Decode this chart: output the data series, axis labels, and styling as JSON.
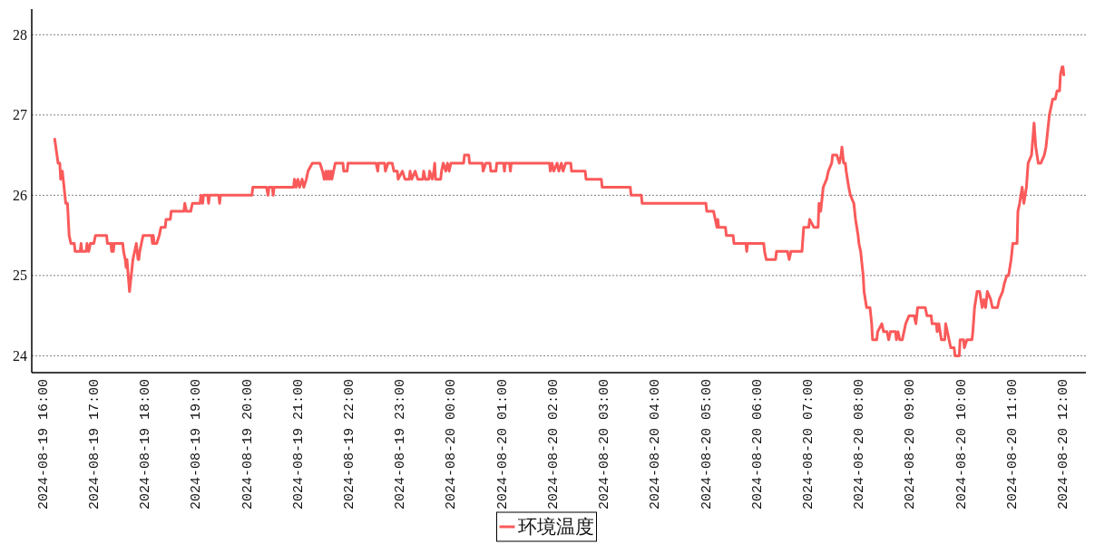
{
  "chart_data": {
    "type": "line",
    "x": [
      "2024-08-19T16:13",
      "2024-08-19T16:17",
      "2024-08-19T16:19",
      "2024-08-19T16:20",
      "2024-08-19T16:22",
      "2024-08-19T16:23",
      "2024-08-19T16:26",
      "2024-08-19T16:28",
      "2024-08-19T16:30",
      "2024-08-19T16:32",
      "2024-08-19T16:36",
      "2024-08-19T16:37",
      "2024-08-19T16:43",
      "2024-08-19T16:44",
      "2024-08-19T16:45",
      "2024-08-19T16:50",
      "2024-08-19T16:51",
      "2024-08-19T16:53",
      "2024-08-19T16:55",
      "2024-08-19T16:59",
      "2024-08-19T17:01",
      "2024-08-19T17:14",
      "2024-08-19T17:15",
      "2024-08-19T17:19",
      "2024-08-19T17:20",
      "2024-08-19T17:21",
      "2024-08-19T17:22",
      "2024-08-19T17:23",
      "2024-08-19T17:33",
      "2024-08-19T17:34",
      "2024-08-19T17:36",
      "2024-08-19T17:37",
      "2024-08-19T17:38",
      "2024-08-19T17:41",
      "2024-08-19T17:44",
      "2024-08-19T17:45",
      "2024-08-19T17:49",
      "2024-08-19T17:51",
      "2024-08-19T17:52",
      "2024-08-19T17:53",
      "2024-08-19T17:55",
      "2024-08-19T17:57",
      "2024-08-19T18:07",
      "2024-08-19T18:08",
      "2024-08-19T18:09",
      "2024-08-19T18:10",
      "2024-08-19T18:13",
      "2024-08-19T18:16",
      "2024-08-19T18:18",
      "2024-08-19T18:23",
      "2024-08-19T18:24",
      "2024-08-19T18:29",
      "2024-08-19T18:30",
      "2024-08-19T18:45",
      "2024-08-19T18:46",
      "2024-08-19T18:48",
      "2024-08-19T18:53",
      "2024-08-19T18:55",
      "2024-08-19T19:04",
      "2024-08-19T19:05",
      "2024-08-19T19:07",
      "2024-08-19T19:08",
      "2024-08-19T19:13",
      "2024-08-19T19:14",
      "2024-08-19T19:15",
      "2024-08-19T19:26",
      "2024-08-19T19:27",
      "2024-08-19T19:28",
      "2024-08-19T20:05",
      "2024-08-19T20:06",
      "2024-08-19T20:22",
      "2024-08-19T20:24",
      "2024-08-19T20:25",
      "2024-08-19T20:29",
      "2024-08-19T20:30",
      "2024-08-19T20:31",
      "2024-08-19T20:54",
      "2024-08-19T20:55",
      "2024-08-19T20:57",
      "2024-08-19T20:59",
      "2024-08-19T21:01",
      "2024-08-19T21:04",
      "2024-08-19T21:06",
      "2024-08-19T21:09",
      "2024-08-19T21:11",
      "2024-08-19T21:16",
      "2024-08-19T21:25",
      "2024-08-19T21:28",
      "2024-08-19T21:30",
      "2024-08-19T21:32",
      "2024-08-19T21:33",
      "2024-08-19T21:35",
      "2024-08-19T21:36",
      "2024-08-19T21:38",
      "2024-08-19T21:39",
      "2024-08-19T21:41",
      "2024-08-19T21:43",
      "2024-08-19T21:52",
      "2024-08-19T21:53",
      "2024-08-19T21:57",
      "2024-08-19T21:58",
      "2024-08-19T22:31",
      "2024-08-19T22:33",
      "2024-08-19T22:34",
      "2024-08-19T22:41",
      "2024-08-19T22:42",
      "2024-08-19T22:45",
      "2024-08-19T22:50",
      "2024-08-19T22:52",
      "2024-08-19T22:56",
      "2024-08-19T22:57",
      "2024-08-19T23:02",
      "2024-08-19T23:05",
      "2024-08-19T23:10",
      "2024-08-19T23:11",
      "2024-08-19T23:13",
      "2024-08-19T23:17",
      "2024-08-19T23:20",
      "2024-08-19T23:26",
      "2024-08-19T23:27",
      "2024-08-19T23:29",
      "2024-08-19T23:33",
      "2024-08-19T23:34",
      "2024-08-19T23:37",
      "2024-08-19T23:39",
      "2024-08-19T23:40",
      "2024-08-19T23:41",
      "2024-08-19T23:47",
      "2024-08-19T23:48",
      "2024-08-19T23:50",
      "2024-08-19T23:53",
      "2024-08-19T23:55",
      "2024-08-19T23:57",
      "2024-08-19T23:59",
      "2024-08-20T00:14",
      "2024-08-20T00:15",
      "2024-08-20T00:20",
      "2024-08-20T00:21",
      "2024-08-20T00:36",
      "2024-08-20T00:37",
      "2024-08-20T00:40",
      "2024-08-20T00:45",
      "2024-08-20T00:46",
      "2024-08-20T00:52",
      "2024-08-20T00:53",
      "2024-08-20T01:01",
      "2024-08-20T01:02",
      "2024-08-20T01:03",
      "2024-08-20T01:08",
      "2024-08-20T01:09",
      "2024-08-20T01:10",
      "2024-08-20T01:55",
      "2024-08-20T01:56",
      "2024-08-20T01:58",
      "2024-08-20T02:00",
      "2024-08-20T02:04",
      "2024-08-20T02:06",
      "2024-08-20T02:09",
      "2024-08-20T02:11",
      "2024-08-20T02:14",
      "2024-08-20T02:20",
      "2024-08-20T02:21",
      "2024-08-20T02:37",
      "2024-08-20T02:38",
      "2024-08-20T02:56",
      "2024-08-20T02:57",
      "2024-08-20T03:30",
      "2024-08-20T03:31",
      "2024-08-20T03:43",
      "2024-08-20T03:44",
      "2024-08-20T04:59",
      "2024-08-20T05:00",
      "2024-08-20T05:08",
      "2024-08-20T05:10",
      "2024-08-20T05:12",
      "2024-08-20T05:13",
      "2024-08-20T05:14",
      "2024-08-20T05:22",
      "2024-08-20T05:23",
      "2024-08-20T05:31",
      "2024-08-20T05:32",
      "2024-08-20T05:46",
      "2024-08-20T05:47",
      "2024-08-20T05:48",
      "2024-08-20T06:07",
      "2024-08-20T06:08",
      "2024-08-20T06:10",
      "2024-08-20T06:21",
      "2024-08-20T06:22",
      "2024-08-20T06:35",
      "2024-08-20T06:37",
      "2024-08-20T06:39",
      "2024-08-20T06:52",
      "2024-08-20T06:54",
      "2024-08-20T07:00",
      "2024-08-20T07:01",
      "2024-08-20T07:06",
      "2024-08-20T07:11",
      "2024-08-20T07:12",
      "2024-08-20T07:14",
      "2024-08-20T07:15",
      "2024-08-20T07:17",
      "2024-08-20T07:21",
      "2024-08-20T07:23",
      "2024-08-20T07:27",
      "2024-08-20T07:28",
      "2024-08-20T07:33",
      "2024-08-20T07:36",
      "2024-08-20T07:38",
      "2024-08-20T07:39",
      "2024-08-20T07:41",
      "2024-08-20T07:43",
      "2024-08-20T07:44",
      "2024-08-20T07:47",
      "2024-08-20T07:49",
      "2024-08-20T07:53",
      "2024-08-20T07:55",
      "2024-08-20T07:58",
      "2024-08-20T07:59",
      "2024-08-20T08:01",
      "2024-08-20T08:04",
      "2024-08-20T08:05",
      "2024-08-20T08:08",
      "2024-08-20T08:12",
      "2024-08-20T08:14",
      "2024-08-20T08:15",
      "2024-08-20T08:20",
      "2024-08-20T08:21",
      "2024-08-20T08:26",
      "2024-08-20T08:28",
      "2024-08-20T08:32",
      "2024-08-20T08:34",
      "2024-08-20T08:36",
      "2024-08-20T08:42",
      "2024-08-20T08:43",
      "2024-08-20T08:45",
      "2024-08-20T08:47",
      "2024-08-20T08:50",
      "2024-08-20T08:52",
      "2024-08-20T08:54",
      "2024-08-20T08:58",
      "2024-08-20T09:04",
      "2024-08-20T09:06",
      "2024-08-20T09:08",
      "2024-08-20T09:17",
      "2024-08-20T09:19",
      "2024-08-20T09:24",
      "2024-08-20T09:25",
      "2024-08-20T09:30",
      "2024-08-20T09:31",
      "2024-08-20T09:33",
      "2024-08-20T09:36",
      "2024-08-20T09:40",
      "2024-08-20T09:41",
      "2024-08-20T09:45",
      "2024-08-20T09:47",
      "2024-08-20T09:51",
      "2024-08-20T09:52",
      "2024-08-20T09:57",
      "2024-08-20T09:58",
      "2024-08-20T10:02",
      "2024-08-20T10:03",
      "2024-08-20T10:06",
      "2024-08-20T10:12",
      "2024-08-20T10:13",
      "2024-08-20T10:15",
      "2024-08-20T10:18",
      "2024-08-20T10:21",
      "2024-08-20T10:24",
      "2024-08-20T10:26",
      "2024-08-20T10:28",
      "2024-08-20T10:30",
      "2024-08-20T10:34",
      "2024-08-20T10:36",
      "2024-08-20T10:42",
      "2024-08-20T10:44",
      "2024-08-20T10:48",
      "2024-08-20T10:50",
      "2024-08-20T10:53",
      "2024-08-20T10:55",
      "2024-08-20T10:58",
      "2024-08-20T11:00",
      "2024-08-20T11:05",
      "2024-08-20T11:06",
      "2024-08-20T11:08",
      "2024-08-20T11:11",
      "2024-08-20T11:13",
      "2024-08-20T11:16",
      "2024-08-20T11:18",
      "2024-08-20T11:22",
      "2024-08-20T11:25",
      "2024-08-20T11:27",
      "2024-08-20T11:30",
      "2024-08-20T11:33",
      "2024-08-20T11:37",
      "2024-08-20T11:39",
      "2024-08-20T11:41",
      "2024-08-20T11:43",
      "2024-08-20T11:45",
      "2024-08-20T11:47",
      "2024-08-20T11:50",
      "2024-08-20T11:52",
      "2024-08-20T11:55",
      "2024-08-20T11:56",
      "2024-08-20T11:58",
      "2024-08-20T11:59",
      "2024-08-20T12:00"
    ],
    "series": [
      {
        "name": "环境温度",
        "color": "#fa5a5a",
        "values": [
          26.7,
          26.4,
          26.4,
          26.2,
          26.3,
          26.2,
          25.9,
          25.9,
          25.5,
          25.4,
          25.4,
          25.3,
          25.3,
          25.4,
          25.3,
          25.3,
          25.4,
          25.3,
          25.4,
          25.4,
          25.5,
          25.5,
          25.4,
          25.4,
          25.3,
          25.4,
          25.3,
          25.4,
          25.4,
          25.3,
          25.2,
          25.1,
          25.2,
          24.8,
          25.1,
          25.2,
          25.4,
          25.2,
          25.2,
          25.3,
          25.4,
          25.5,
          25.5,
          25.4,
          25.5,
          25.4,
          25.4,
          25.5,
          25.6,
          25.6,
          25.7,
          25.7,
          25.8,
          25.8,
          25.9,
          25.8,
          25.8,
          25.9,
          25.9,
          26.0,
          25.9,
          26.0,
          26.0,
          25.9,
          26.0,
          26.0,
          25.9,
          26.0,
          26.0,
          26.1,
          26.1,
          26.0,
          26.1,
          26.1,
          26.0,
          26.1,
          26.1,
          26.2,
          26.1,
          26.2,
          26.1,
          26.2,
          26.1,
          26.2,
          26.3,
          26.4,
          26.4,
          26.3,
          26.2,
          26.3,
          26.2,
          26.3,
          26.2,
          26.3,
          26.2,
          26.3,
          26.4,
          26.4,
          26.3,
          26.3,
          26.4,
          26.4,
          26.3,
          26.4,
          26.4,
          26.3,
          26.4,
          26.4,
          26.3,
          26.3,
          26.2,
          26.3,
          26.2,
          26.2,
          26.3,
          26.2,
          26.3,
          26.2,
          26.2,
          26.3,
          26.2,
          26.2,
          26.3,
          26.2,
          26.3,
          26.4,
          26.2,
          26.2,
          26.3,
          26.4,
          26.3,
          26.4,
          26.3,
          26.4,
          26.4,
          26.5,
          26.5,
          26.4,
          26.4,
          26.3,
          26.4,
          26.4,
          26.3,
          26.3,
          26.4,
          26.4,
          26.3,
          26.4,
          26.4,
          26.3,
          26.4,
          26.4,
          26.3,
          26.4,
          26.3,
          26.4,
          26.3,
          26.4,
          26.3,
          26.4,
          26.4,
          26.3,
          26.3,
          26.2,
          26.2,
          26.1,
          26.1,
          26.0,
          26.0,
          25.9,
          25.9,
          25.8,
          25.8,
          25.7,
          25.6,
          25.7,
          25.6,
          25.6,
          25.5,
          25.5,
          25.4,
          25.4,
          25.3,
          25.4,
          25.4,
          25.3,
          25.2,
          25.2,
          25.3,
          25.3,
          25.2,
          25.3,
          25.3,
          25.6,
          25.6,
          25.7,
          25.6,
          25.6,
          25.9,
          25.8,
          25.9,
          26.1,
          26.2,
          26.3,
          26.4,
          26.5,
          26.5,
          26.4,
          26.5,
          26.6,
          26.4,
          26.4,
          26.3,
          26.1,
          26.0,
          25.9,
          25.7,
          25.5,
          25.4,
          25.3,
          25.0,
          24.8,
          24.6,
          24.6,
          24.4,
          24.2,
          24.2,
          24.3,
          24.4,
          24.3,
          24.3,
          24.2,
          24.3,
          24.3,
          24.2,
          24.3,
          24.2,
          24.2,
          24.3,
          24.4,
          24.5,
          24.5,
          24.4,
          24.6,
          24.6,
          24.5,
          24.5,
          24.4,
          24.4,
          24.3,
          24.4,
          24.2,
          24.2,
          24.4,
          24.2,
          24.1,
          24.1,
          24.0,
          24.0,
          24.2,
          24.2,
          24.1,
          24.2,
          24.2,
          24.3,
          24.6,
          24.8,
          24.8,
          24.6,
          24.7,
          24.6,
          24.8,
          24.7,
          24.6,
          24.6,
          24.7,
          24.8,
          24.9,
          25.0,
          25.0,
          25.2,
          25.4,
          25.4,
          25.8,
          25.9,
          26.1,
          25.9,
          26.1,
          26.4,
          26.5,
          26.9,
          26.6,
          26.4,
          26.4,
          26.5,
          26.6,
          26.8,
          27.0,
          27.1,
          27.2,
          27.2,
          27.3,
          27.3,
          27.5,
          27.6,
          27.6,
          27.5
        ]
      }
    ],
    "xlim": [
      "2024-08-19T15:46",
      "2024-08-20T12:26"
    ],
    "xticks": [
      {
        "value": "2024-08-19T16:00",
        "label": "2024-08-19 16:00"
      },
      {
        "value": "2024-08-19T17:00",
        "label": "2024-08-19 17:00"
      },
      {
        "value": "2024-08-19T18:00",
        "label": "2024-08-19 18:00"
      },
      {
        "value": "2024-08-19T19:00",
        "label": "2024-08-19 19:00"
      },
      {
        "value": "2024-08-19T20:00",
        "label": "2024-08-19 20:00"
      },
      {
        "value": "2024-08-19T21:00",
        "label": "2024-08-19 21:00"
      },
      {
        "value": "2024-08-19T22:00",
        "label": "2024-08-19 22:00"
      },
      {
        "value": "2024-08-19T23:00",
        "label": "2024-08-19 23:00"
      },
      {
        "value": "2024-08-20T00:00",
        "label": "2024-08-20 00:00"
      },
      {
        "value": "2024-08-20T01:00",
        "label": "2024-08-20 01:00"
      },
      {
        "value": "2024-08-20T02:00",
        "label": "2024-08-20 02:00"
      },
      {
        "value": "2024-08-20T03:00",
        "label": "2024-08-20 03:00"
      },
      {
        "value": "2024-08-20T04:00",
        "label": "2024-08-20 04:00"
      },
      {
        "value": "2024-08-20T05:00",
        "label": "2024-08-20 05:00"
      },
      {
        "value": "2024-08-20T06:00",
        "label": "2024-08-20 06:00"
      },
      {
        "value": "2024-08-20T07:00",
        "label": "2024-08-20 07:00"
      },
      {
        "value": "2024-08-20T08:00",
        "label": "2024-08-20 08:00"
      },
      {
        "value": "2024-08-20T09:00",
        "label": "2024-08-20 09:00"
      },
      {
        "value": "2024-08-20T10:00",
        "label": "2024-08-20 10:00"
      },
      {
        "value": "2024-08-20T11:00",
        "label": "2024-08-20 11:00"
      },
      {
        "value": "2024-08-20T12:00",
        "label": "2024-08-20 12:00"
      }
    ],
    "ylim": [
      23.79,
      28.32
    ],
    "yticks": [
      24,
      25,
      26,
      27,
      28
    ],
    "grid": "y",
    "legend": "bottom"
  }
}
